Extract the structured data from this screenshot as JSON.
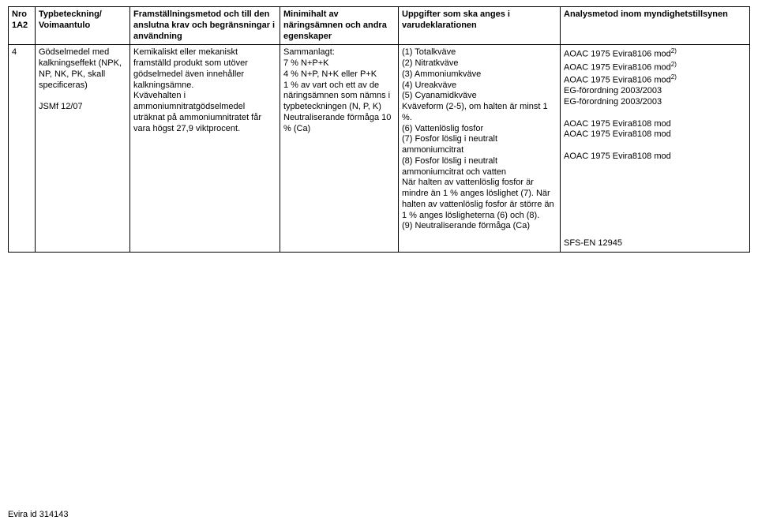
{
  "table": {
    "headers": {
      "nro": "Nro\n1A2",
      "typ": "Typbeteckning/\nVoimaantulo",
      "fram": "Framställningsmetod och till den anslutna krav och begränsningar i användning",
      "min": "Minimihalt av näringsämnen och andra egenskaper",
      "upp": "Uppgifter som ska anges i varudeklarationen",
      "ana": "Analysmetod inom myndighetstillsynen"
    },
    "row": {
      "nro": "4",
      "typ_line1": "Gödselmedel med kalkningseffekt (NPK, NP, NK, PK, skall specificeras)",
      "typ_blank": "",
      "typ_line2": "JSMf 12/07",
      "fram": "Kemikaliskt eller mekaniskt framställd produkt som utöver gödselmedel även innehåller kalkningsämne.\nKvävehalten i ammoniumnitratgödselmedel uträknat på ammoniumnitratet får vara högst 27,9 viktprocent.",
      "min": "Sammanlagt:\n7 % N+P+K\n4 % N+P, N+K eller P+K\n1 % av vart och ett av de näringsämnen som nämns i typbeteckningen (N, P, K)\nNeutraliserande förmåga 10 % (Ca)",
      "upp": "(1) Totalkväve\n(2) Nitratkväve\n(3) Ammoniumkväve\n(4) Ureakväve\n(5) Cyanamidkväve\n    Kväveform (2-5), om halten är minst 1 %.\n(6) Vattenlöslig fosfor\n(7) Fosfor löslig i neutralt ammoniumcitrat\n(8) Fosfor löslig i neutralt ammoniumcitrat och vatten\n    När halten av vattenlöslig fosfor är mindre än 1 % anges löslighet (7). När halten av vattenlöslig fosfor är större än 1 % anges lösligheterna (6) och (8).\n(9) Neutraliserande förmåga (Ca)",
      "ana_1": "AOAC 1975 Evira8106 mod",
      "ana_2": "AOAC 1975 Evira8106 mod",
      "ana_3": "AOAC 1975 Evira8106 mod",
      "ana_4": "EG-förordning 2003/2003",
      "ana_5": "EG-förordning 2003/2003",
      "ana_6": "AOAC 1975 Evira8108 mod",
      "ana_7": "AOAC 1975 Evira8108 mod",
      "ana_8": "AOAC 1975 Evira8108 mod",
      "ana_9": "SFS-EN 12945",
      "sup2": "2)"
    }
  },
  "footer": "Evira id 314143"
}
